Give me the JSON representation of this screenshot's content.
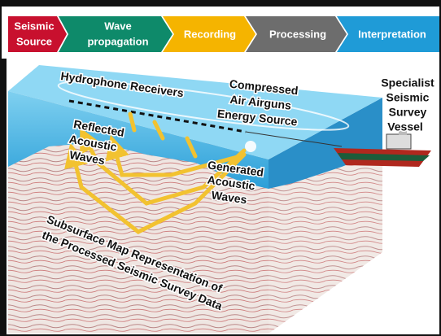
{
  "process_steps": [
    [
      "Seismic",
      "Source"
    ],
    [
      "Wave",
      "propagation"
    ],
    [
      "Recording"
    ],
    [
      "Processing"
    ],
    [
      "Interpretation"
    ]
  ],
  "labels": {
    "hydrophone": [
      "Hydrophone Receivers"
    ],
    "airguns": [
      "Compressed",
      "Air Airguns",
      "Energy Source"
    ],
    "vessel": [
      "Specialist",
      "Seismic",
      "Survey",
      "Vessel"
    ],
    "reflected": [
      "Reflected",
      "Acoustic",
      "Waves"
    ],
    "generated": [
      "Generated",
      "Acoustic",
      "Waves"
    ],
    "subsurface": [
      "Subsurface Map Representation of",
      "the Processed Seismic Survey Data"
    ]
  }
}
